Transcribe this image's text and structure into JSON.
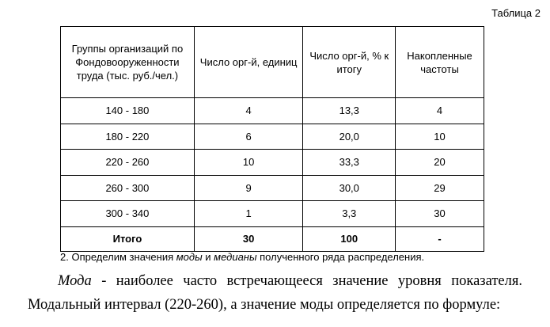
{
  "caption": "Таблица 2",
  "table": {
    "headers": [
      "Группы организаций по Фондовооруженности труда (тыс. руб./чел.)",
      "Число орг-й, единиц",
      "Число орг-й, % к итогу",
      "Накопленные частоты"
    ],
    "rows": [
      [
        "140  - 180",
        "4",
        "13,3",
        "4"
      ],
      [
        "180  - 220",
        "6",
        "20,0",
        "10"
      ],
      [
        "220  - 260",
        "10",
        "33,3",
        "20"
      ],
      [
        "260  - 300",
        "9",
        "30,0",
        "29"
      ],
      [
        "300  - 340",
        "1",
        "3,3",
        "30"
      ]
    ],
    "total": [
      "Итого",
      "30",
      "100",
      "-"
    ]
  },
  "note": {
    "prefix": "2. Определим значения ",
    "term1": "моды",
    "middle": " и ",
    "term2": "медианы",
    "suffix": " полученного ряда распределения."
  },
  "paragraph": {
    "term": "Мода",
    "line1_rest": " - наиболее часто встречающееся значение уровня показателя.",
    "line2": "Модальный интервал (220-260), а значение моды определяется по формуле:"
  }
}
